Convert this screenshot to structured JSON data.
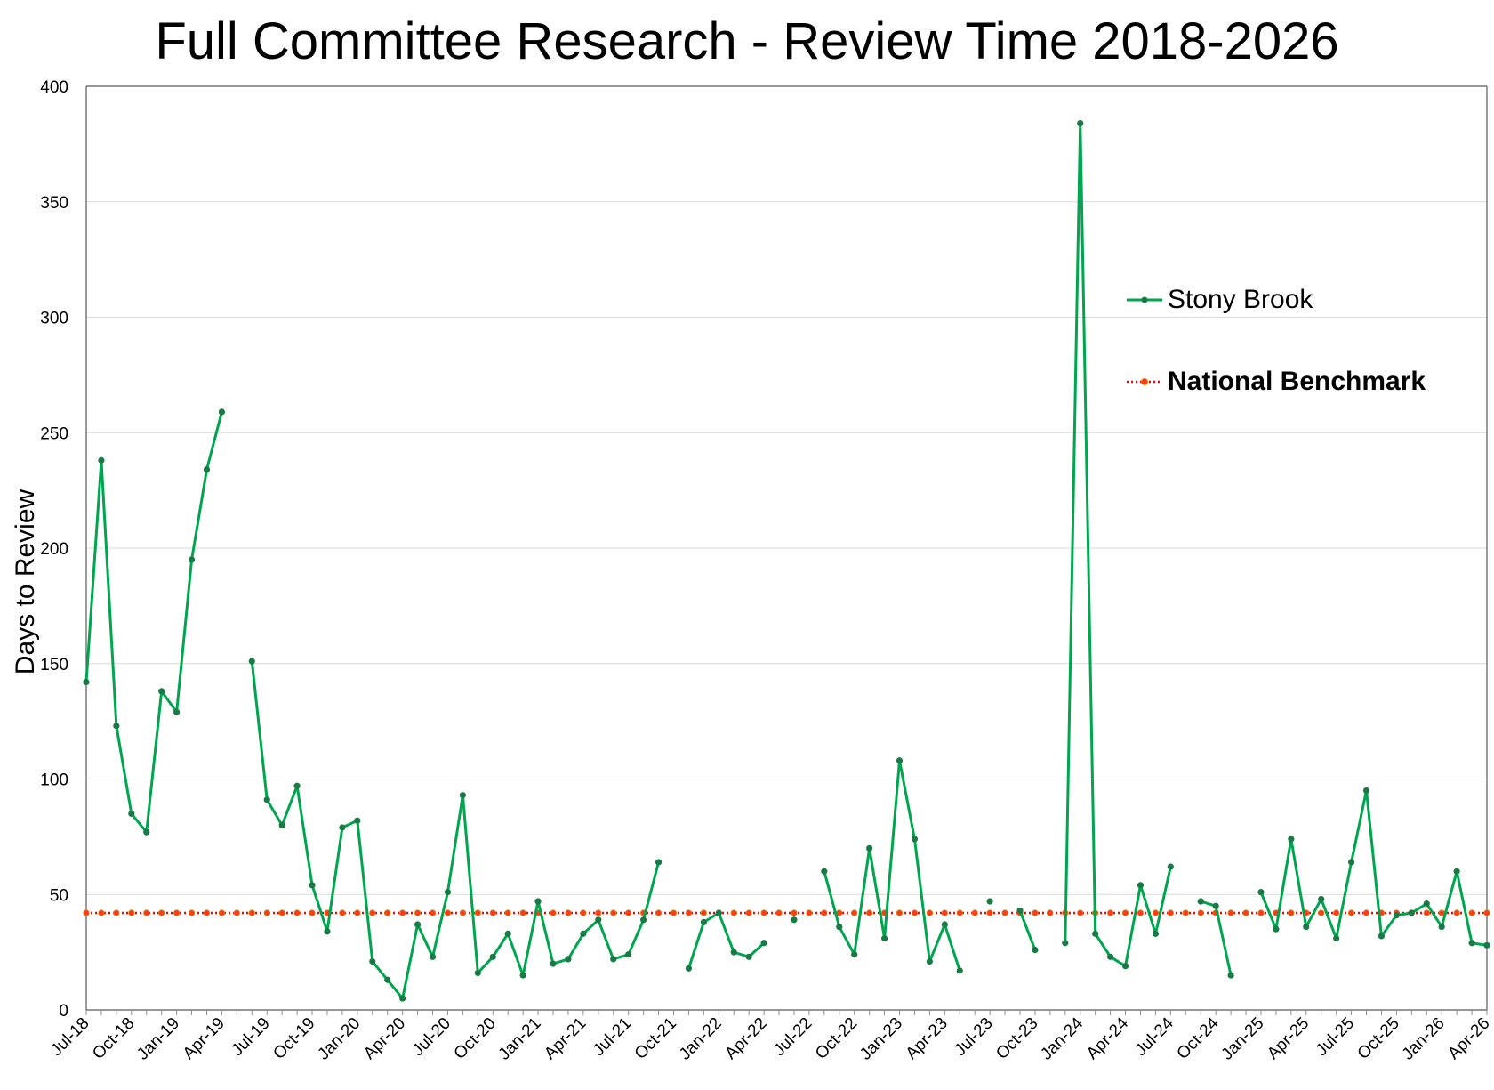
{
  "chart_data": {
    "type": "line",
    "title": "Full Committee Research - Review Time 2018-2026",
    "ylabel": "Days to Review",
    "xlabel": "",
    "ylim": [
      0,
      400
    ],
    "yticks": [
      0,
      50,
      100,
      150,
      200,
      250,
      300,
      350,
      400
    ],
    "grid": "horizontal",
    "legend_position": "right",
    "x_start": "Jul-18",
    "x_end": "Apr-26",
    "xtick_labels": [
      "Jul-18",
      "Oct-18",
      "Jan-19",
      "Apr-19",
      "Jul-19",
      "Oct-19",
      "Jan-20",
      "Apr-20",
      "Jul-20",
      "Oct-20",
      "Jan-21",
      "Apr-21",
      "Jul-21",
      "Oct-21",
      "Jan-22",
      "Apr-22",
      "Jul-22",
      "Oct-22",
      "Jan-23",
      "Apr-23",
      "Jul-23",
      "Oct-23",
      "Jan-24",
      "Apr-24",
      "Jul-24",
      "Oct-24",
      "Jan-25",
      "Apr-25",
      "Jul-25",
      "Oct-25",
      "Jan-26",
      "Apr-26"
    ],
    "series": [
      {
        "name": "Stony Brook",
        "color": "#00a550",
        "style": "solid-line-with-markers",
        "values": [
          142,
          238,
          123,
          85,
          77,
          138,
          129,
          195,
          234,
          259,
          null,
          151,
          91,
          80,
          97,
          54,
          34,
          79,
          82,
          21,
          13,
          5,
          37,
          23,
          51,
          93,
          16,
          23,
          33,
          15,
          47,
          20,
          22,
          33,
          39,
          22,
          24,
          39,
          64,
          null,
          18,
          38,
          42,
          25,
          23,
          29,
          null,
          39,
          null,
          60,
          36,
          24,
          70,
          31,
          108,
          74,
          21,
          37,
          17,
          null,
          47,
          null,
          43,
          26,
          null,
          29,
          384,
          33,
          23,
          19,
          54,
          33,
          62,
          null,
          47,
          45,
          15,
          null,
          51,
          35,
          74,
          36,
          48,
          31,
          64,
          95,
          32,
          41,
          42,
          46,
          36,
          60,
          29,
          28
        ]
      },
      {
        "name": "National Benchmark",
        "color": "#ff0000",
        "style": "dotted-line-with-markers",
        "constant_value": 42
      }
    ]
  }
}
